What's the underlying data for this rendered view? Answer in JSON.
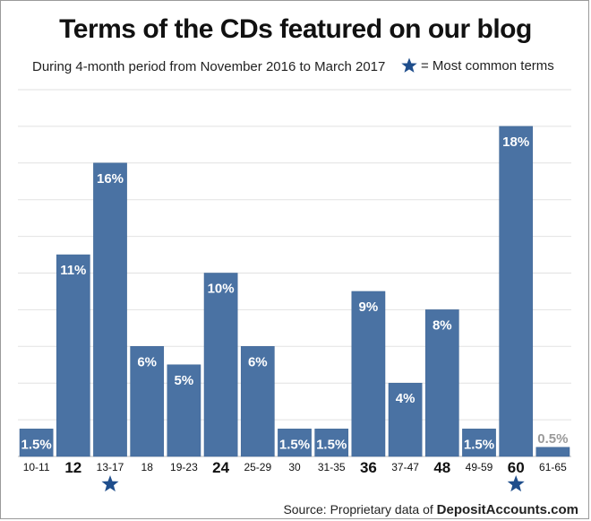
{
  "header": {
    "title": "Terms of the CDs featured on our blog",
    "subtitle": "During 4-month period from November 2016 to March 2017",
    "legend_text": "= Most common terms"
  },
  "footer": {
    "source_prefix": "Source: Proprietary data of ",
    "source_brand": "DepositAccounts.com"
  },
  "chart_data": {
    "type": "bar",
    "title": "Terms of the CDs featured on our blog",
    "subtitle": "During 4-month period from November 2016 to March 2017",
    "xlabel": "",
    "ylabel": "",
    "categories": [
      "10-11",
      "12",
      "13-17",
      "18",
      "19-23",
      "24",
      "25-29",
      "30",
      "31-35",
      "36",
      "37-47",
      "48",
      "49-59",
      "60",
      "61-65"
    ],
    "values": [
      1.5,
      11,
      16,
      6,
      5,
      10,
      6,
      1.5,
      1.5,
      9,
      4,
      8,
      1.5,
      18,
      0.5
    ],
    "labels": [
      "1.5%",
      "11%",
      "16%",
      "6%",
      "5%",
      "10%",
      "6%",
      "1.5%",
      "1.5%",
      "9%",
      "4%",
      "8%",
      "1.5%",
      "18%",
      "0.5%"
    ],
    "bold_categories": [
      "12",
      "24",
      "36",
      "48",
      "60"
    ],
    "starred_categories": [
      "13-17",
      "60"
    ],
    "ylim": [
      0,
      20
    ],
    "grid": true,
    "bar_color": "#4a72a3",
    "small_label_color": "#9a9a9a",
    "star_color": "#1f4e8c"
  }
}
